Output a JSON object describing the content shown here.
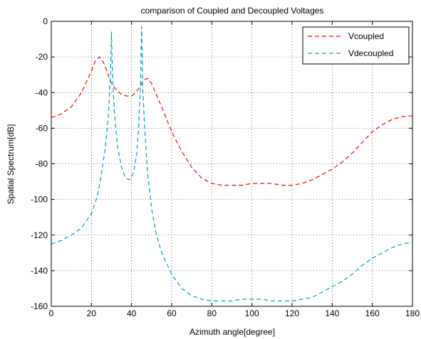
{
  "chart_data": {
    "type": "line",
    "title": "comparison of Coupled and Decoupled Voltages",
    "xlabel": "Azimuth angle[degree]",
    "ylabel": "Spatial Spectrum[dB]",
    "xlim": [
      0,
      180
    ],
    "ylim": [
      -160,
      0
    ],
    "xticks": [
      0,
      20,
      40,
      60,
      80,
      100,
      120,
      140,
      160,
      180
    ],
    "yticks": [
      0,
      -20,
      -40,
      -60,
      -80,
      -100,
      -120,
      -140,
      -160
    ],
    "grid": true,
    "legend_position": "top-right",
    "series": [
      {
        "name": "Vcoupled",
        "color": "#ff0000",
        "line_style": "dashed",
        "x": [
          0,
          5,
          10,
          15,
          20,
          22,
          24,
          26,
          28,
          30,
          32,
          35,
          38,
          40,
          42,
          44,
          46,
          48,
          50,
          55,
          60,
          65,
          70,
          75,
          80,
          85,
          90,
          95,
          100,
          105,
          110,
          115,
          120,
          125,
          130,
          135,
          140,
          145,
          150,
          155,
          160,
          165,
          170,
          175,
          180
        ],
        "y": [
          -54,
          -52,
          -48,
          -40,
          -28,
          -22,
          -20,
          -23,
          -29,
          -35,
          -38,
          -41,
          -42,
          -42,
          -40,
          -37,
          -33,
          -32,
          -35,
          -48,
          -62,
          -73,
          -82,
          -88,
          -91,
          -92,
          -92,
          -92,
          -91,
          -91,
          -91,
          -92,
          -92,
          -91,
          -89,
          -86,
          -83,
          -79,
          -74,
          -68,
          -62,
          -58,
          -55,
          -53.5,
          -53
        ]
      },
      {
        "name": "Vdecoupled",
        "color": "#00a0c8",
        "line_style": "dashed",
        "x": [
          0,
          5,
          10,
          15,
          20,
          23,
          25,
          27,
          28.5,
          29.5,
          30,
          30.5,
          31.5,
          33,
          35,
          37,
          39,
          41,
          42.5,
          43.5,
          44.5,
          45,
          45.5,
          46.5,
          48,
          50,
          52,
          55,
          60,
          65,
          70,
          75,
          80,
          85,
          90,
          95,
          100,
          105,
          110,
          115,
          120,
          125,
          130,
          135,
          140,
          145,
          150,
          155,
          160,
          165,
          170,
          175,
          180
        ],
        "y": [
          -125,
          -123,
          -120,
          -116,
          -108,
          -98,
          -86,
          -70,
          -52,
          -30,
          -6,
          -30,
          -52,
          -70,
          -82,
          -88,
          -89,
          -85,
          -75,
          -60,
          -35,
          -3,
          -35,
          -60,
          -85,
          -105,
          -118,
          -130,
          -142,
          -150,
          -154,
          -156,
          -157,
          -157,
          -157,
          -156,
          -156,
          -156,
          -157,
          -157,
          -157,
          -156,
          -155,
          -152,
          -149,
          -146,
          -142,
          -137,
          -133,
          -130,
          -127,
          -125,
          -124
        ]
      }
    ]
  }
}
